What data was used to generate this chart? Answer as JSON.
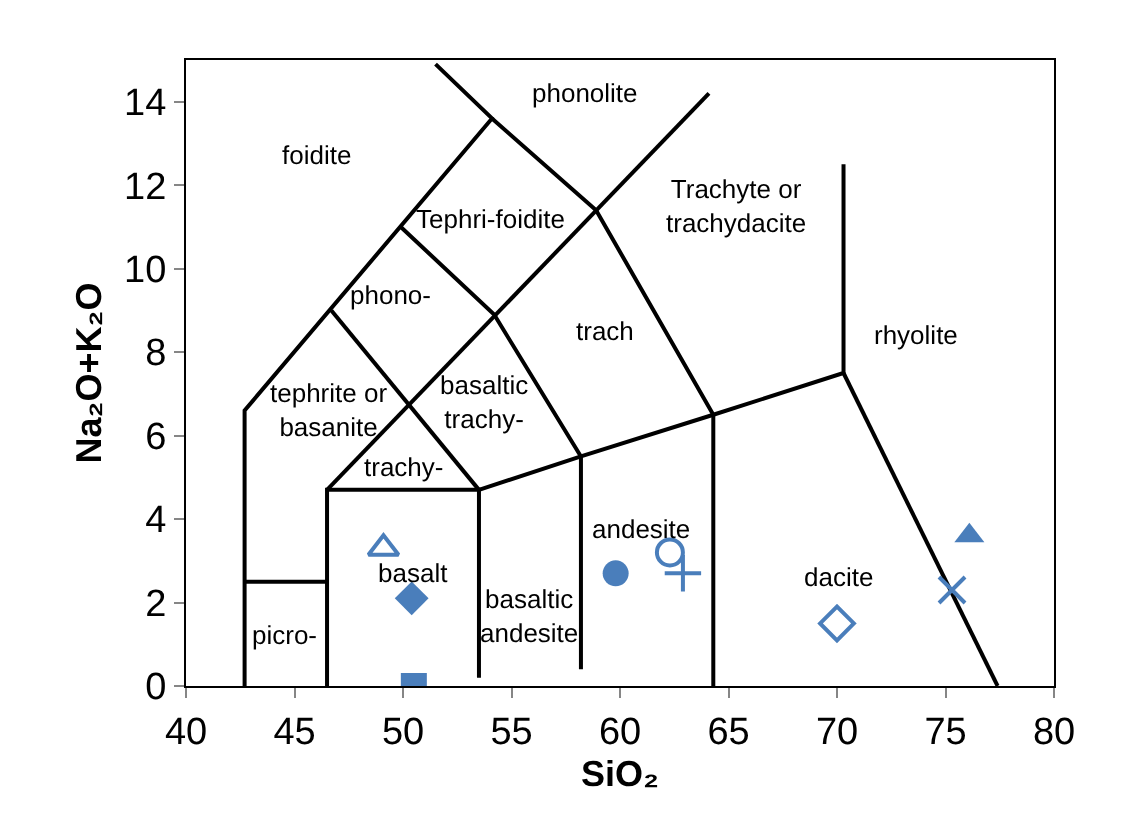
{
  "chart_data": {
    "type": "scatter",
    "xlabel": "SiO₂",
    "ylabel": "Na₂O+K₂O",
    "xlim": [
      40,
      80
    ],
    "xticks": [
      40,
      45,
      50,
      55,
      60,
      65,
      70,
      75,
      80
    ],
    "ylim": [
      0,
      15
    ],
    "yticks": [
      0,
      2,
      4,
      6,
      8,
      10,
      12,
      14
    ],
    "series": [
      {
        "type": "line",
        "color": "#000000",
        "marker": "none",
        "x": [
          42.7,
          42.7,
          54.1,
          51.5
        ],
        "values": [
          0,
          6.6,
          13.6,
          14.9
        ]
      },
      {
        "type": "line",
        "color": "#000000",
        "marker": "none",
        "x": [
          54.1,
          58.9,
          64.3,
          64.3
        ],
        "values": [
          13.6,
          11.4,
          6.5,
          0
        ]
      },
      {
        "type": "line",
        "color": "#000000",
        "marker": "none",
        "x": [
          46.5,
          46.5,
          53.5,
          53.5
        ],
        "values": [
          0,
          4.7,
          4.7,
          0.2
        ]
      },
      {
        "type": "line",
        "color": "#000000",
        "marker": "none",
        "x": [
          46.5,
          64.1
        ],
        "values": [
          4.7,
          14.2
        ]
      },
      {
        "type": "line",
        "color": "#000000",
        "marker": "none",
        "x": [
          49.9,
          54.2,
          58.2,
          58.2
        ],
        "values": [
          11.0,
          8.9,
          5.5,
          0.4
        ]
      },
      {
        "type": "line",
        "color": "#000000",
        "marker": "none",
        "x": [
          46.7,
          53.5
        ],
        "values": [
          9.0,
          4.7
        ]
      },
      {
        "type": "line",
        "color": "#000000",
        "marker": "none",
        "x": [
          53.5,
          58.2,
          64.3,
          70.3,
          70.3
        ],
        "values": [
          4.7,
          5.5,
          6.5,
          7.5,
          12.5
        ]
      },
      {
        "type": "line",
        "color": "#000000",
        "marker": "none",
        "x": [
          70.3,
          77.4
        ],
        "values": [
          7.5,
          0
        ]
      },
      {
        "type": "line",
        "color": "#000000",
        "marker": "none",
        "x": [
          42.7,
          46.5
        ],
        "values": [
          2.5,
          2.5
        ]
      },
      {
        "color": "#4a7ebb",
        "marker": "triangle-open",
        "x": [
          49.1
        ],
        "values": [
          3.3
        ]
      },
      {
        "color": "#4a7ebb",
        "marker": "diamond",
        "x": [
          50.4
        ],
        "values": [
          2.1
        ]
      },
      {
        "color": "#4a7ebb",
        "marker": "square",
        "x": [
          50.5
        ],
        "values": [
          0
        ]
      },
      {
        "color": "#4a7ebb",
        "marker": "circle",
        "x": [
          59.8
        ],
        "values": [
          2.7
        ]
      },
      {
        "color": "#4a7ebb",
        "marker": "circle-open",
        "x": [
          62.3
        ],
        "values": [
          3.2
        ]
      },
      {
        "color": "#4a7ebb",
        "marker": "cross",
        "x": [
          62.9
        ],
        "values": [
          2.7
        ]
      },
      {
        "color": "#4a7ebb",
        "marker": "diamond-open",
        "x": [
          70.0
        ],
        "values": [
          1.5
        ]
      },
      {
        "color": "#4a7ebb",
        "marker": "x",
        "x": [
          75.3
        ],
        "values": [
          2.3
        ]
      },
      {
        "color": "#4a7ebb",
        "marker": "triangle",
        "x": [
          76.1
        ],
        "values": [
          3.6
        ]
      }
    ],
    "annotations": [
      "phonolite",
      "foidite",
      "Tephri-foidite",
      "Trachyte or\ntrachydacite",
      "phono-",
      "tephrite or\nbasanite",
      "trach",
      "rhyolite",
      "basaltic\ntrachy-",
      "trachy-",
      "basalt",
      "andesite",
      "basaltic\nandesite",
      "picro-",
      "dacite"
    ]
  }
}
